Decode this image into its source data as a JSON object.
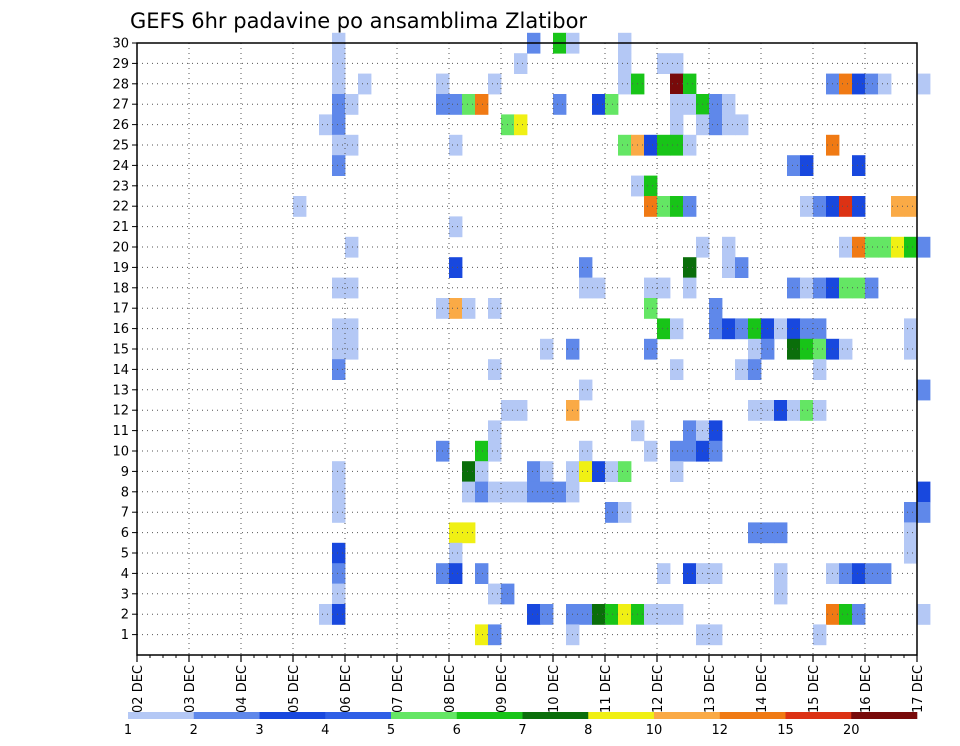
{
  "chart_data": {
    "type": "heatmap",
    "title": "GEFS 6hr padavine po ansamblima Zlatibor",
    "x_axis": {
      "tick_labels": [
        "02 DEC",
        "03 DEC",
        "04 DEC",
        "05 DEC",
        "06 DEC",
        "07 DEC",
        "08 DEC",
        "09 DEC",
        "10 DEC",
        "11 DEC",
        "12 DEC",
        "13 DEC",
        "14 DEC",
        "15 DEC",
        "16 DEC",
        "17 DEC"
      ],
      "steps_per_day": 4,
      "range_days": [
        0,
        15
      ]
    },
    "y_axis": {
      "tick_labels": [
        "1",
        "2",
        "3",
        "4",
        "5",
        "6",
        "7",
        "8",
        "9",
        "10",
        "11",
        "12",
        "13",
        "14",
        "15",
        "16",
        "17",
        "18",
        "19",
        "20",
        "21",
        "22",
        "23",
        "24",
        "25",
        "26",
        "27",
        "28",
        "29",
        "30"
      ],
      "range": [
        0,
        30
      ]
    },
    "grid": "dotted",
    "colorbar": {
      "placement": "bottom",
      "labels": [
        "1",
        "2",
        "3",
        "4",
        "5",
        "6",
        "7",
        "8",
        "10",
        "12",
        "15",
        "20"
      ],
      "colors": [
        "#b4c8f5",
        "#5f88ea",
        "#1848de",
        "#2f5fe6",
        "#64e664",
        "#18c418",
        "#0a6e0a",
        "#f0f014",
        "#faaa46",
        "#f07a14",
        "#dc3214",
        "#780a0a"
      ]
    },
    "color_levels": {
      "1": "#b4c8f5",
      "2": "#5f88ea",
      "3": "#1848de",
      "4": "#64e664",
      "5": "#18c418",
      "6": "#0a6e0a",
      "7": "#f0f014",
      "8": "#faaa46",
      "9": "#f07a14",
      "10": "#dc3214",
      "11": "#780a0a"
    },
    "note_cells": "each cell = [member, forecast_step(6h index from 02 DEC 00z), precipitation class]",
    "cells": [
      [
        30,
        15,
        1
      ],
      [
        30,
        30,
        2
      ],
      [
        30,
        32,
        5
      ],
      [
        30,
        33,
        1
      ],
      [
        30,
        37,
        1
      ],
      [
        29,
        15,
        1
      ],
      [
        29,
        29,
        1
      ],
      [
        29,
        37,
        1
      ],
      [
        29,
        40,
        1
      ],
      [
        29,
        41,
        1
      ],
      [
        28,
        15,
        1
      ],
      [
        28,
        17,
        1
      ],
      [
        28,
        23,
        1
      ],
      [
        28,
        27,
        1
      ],
      [
        28,
        37,
        1
      ],
      [
        28,
        38,
        5
      ],
      [
        28,
        41,
        11
      ],
      [
        28,
        42,
        5
      ],
      [
        28,
        53,
        2
      ],
      [
        28,
        54,
        9
      ],
      [
        28,
        55,
        3
      ],
      [
        28,
        56,
        2
      ],
      [
        28,
        57,
        1
      ],
      [
        28,
        60,
        1
      ],
      [
        27,
        15,
        2
      ],
      [
        27,
        16,
        1
      ],
      [
        27,
        23,
        2
      ],
      [
        27,
        24,
        2
      ],
      [
        27,
        25,
        4
      ],
      [
        27,
        26,
        9
      ],
      [
        27,
        32,
        2
      ],
      [
        27,
        35,
        3
      ],
      [
        27,
        36,
        4
      ],
      [
        27,
        41,
        1
      ],
      [
        27,
        42,
        1
      ],
      [
        27,
        43,
        5
      ],
      [
        27,
        44,
        2
      ],
      [
        27,
        45,
        1
      ],
      [
        26,
        14,
        1
      ],
      [
        26,
        15,
        2
      ],
      [
        26,
        28,
        4
      ],
      [
        26,
        29,
        7
      ],
      [
        26,
        41,
        1
      ],
      [
        26,
        43,
        1
      ],
      [
        26,
        44,
        2
      ],
      [
        26,
        45,
        1
      ],
      [
        26,
        46,
        1
      ],
      [
        25,
        15,
        1
      ],
      [
        25,
        16,
        1
      ],
      [
        25,
        24,
        1
      ],
      [
        25,
        37,
        4
      ],
      [
        25,
        38,
        8
      ],
      [
        25,
        39,
        3
      ],
      [
        25,
        40,
        5
      ],
      [
        25,
        41,
        5
      ],
      [
        25,
        42,
        1
      ],
      [
        25,
        53,
        9
      ],
      [
        24,
        15,
        2
      ],
      [
        24,
        50,
        2
      ],
      [
        24,
        51,
        3
      ],
      [
        24,
        55,
        3
      ],
      [
        23,
        38,
        1
      ],
      [
        23,
        39,
        5
      ],
      [
        22,
        12,
        1
      ],
      [
        22,
        39,
        9
      ],
      [
        22,
        40,
        4
      ],
      [
        22,
        41,
        5
      ],
      [
        22,
        42,
        2
      ],
      [
        22,
        51,
        1
      ],
      [
        22,
        52,
        2
      ],
      [
        22,
        53,
        3
      ],
      [
        22,
        54,
        10
      ],
      [
        22,
        55,
        3
      ],
      [
        22,
        58,
        8
      ],
      [
        22,
        59,
        8
      ],
      [
        21,
        24,
        1
      ],
      [
        20,
        16,
        1
      ],
      [
        20,
        43,
        1
      ],
      [
        20,
        45,
        1
      ],
      [
        20,
        54,
        1
      ],
      [
        20,
        55,
        9
      ],
      [
        20,
        56,
        4
      ],
      [
        20,
        57,
        4
      ],
      [
        20,
        58,
        7
      ],
      [
        20,
        59,
        5
      ],
      [
        20,
        60,
        2
      ],
      [
        19,
        24,
        3
      ],
      [
        19,
        34,
        2
      ],
      [
        19,
        42,
        6
      ],
      [
        19,
        45,
        1
      ],
      [
        19,
        46,
        2
      ],
      [
        18,
        15,
        1
      ],
      [
        18,
        16,
        1
      ],
      [
        18,
        34,
        1
      ],
      [
        18,
        35,
        1
      ],
      [
        18,
        39,
        1
      ],
      [
        18,
        40,
        1
      ],
      [
        18,
        42,
        1
      ],
      [
        18,
        50,
        2
      ],
      [
        18,
        51,
        1
      ],
      [
        18,
        52,
        2
      ],
      [
        18,
        53,
        3
      ],
      [
        18,
        54,
        4
      ],
      [
        18,
        55,
        4
      ],
      [
        18,
        56,
        2
      ],
      [
        17,
        23,
        1
      ],
      [
        17,
        24,
        8
      ],
      [
        17,
        25,
        1
      ],
      [
        17,
        27,
        1
      ],
      [
        17,
        39,
        4
      ],
      [
        17,
        44,
        2
      ],
      [
        16,
        15,
        1
      ],
      [
        16,
        16,
        1
      ],
      [
        16,
        40,
        5
      ],
      [
        16,
        41,
        1
      ],
      [
        16,
        44,
        2
      ],
      [
        16,
        45,
        3
      ],
      [
        16,
        46,
        2
      ],
      [
        16,
        47,
        5
      ],
      [
        16,
        48,
        3
      ],
      [
        16,
        49,
        1
      ],
      [
        16,
        50,
        3
      ],
      [
        16,
        51,
        2
      ],
      [
        16,
        52,
        2
      ],
      [
        16,
        59,
        1
      ],
      [
        15,
        15,
        1
      ],
      [
        15,
        16,
        1
      ],
      [
        15,
        31,
        1
      ],
      [
        15,
        33,
        2
      ],
      [
        15,
        39,
        2
      ],
      [
        15,
        47,
        1
      ],
      [
        15,
        48,
        2
      ],
      [
        15,
        50,
        6
      ],
      [
        15,
        51,
        5
      ],
      [
        15,
        52,
        4
      ],
      [
        15,
        53,
        3
      ],
      [
        15,
        54,
        1
      ],
      [
        15,
        59,
        1
      ],
      [
        14,
        15,
        2
      ],
      [
        14,
        27,
        1
      ],
      [
        14,
        41,
        1
      ],
      [
        14,
        46,
        1
      ],
      [
        14,
        47,
        2
      ],
      [
        14,
        52,
        1
      ],
      [
        13,
        34,
        1
      ],
      [
        13,
        60,
        2
      ],
      [
        12,
        28,
        1
      ],
      [
        12,
        29,
        1
      ],
      [
        12,
        33,
        8
      ],
      [
        12,
        47,
        1
      ],
      [
        12,
        48,
        1
      ],
      [
        12,
        49,
        3
      ],
      [
        12,
        50,
        1
      ],
      [
        12,
        51,
        4
      ],
      [
        12,
        52,
        1
      ],
      [
        11,
        27,
        1
      ],
      [
        11,
        38,
        1
      ],
      [
        11,
        42,
        2
      ],
      [
        11,
        43,
        1
      ],
      [
        11,
        44,
        3
      ],
      [
        10,
        23,
        2
      ],
      [
        10,
        26,
        5
      ],
      [
        10,
        27,
        1
      ],
      [
        10,
        34,
        1
      ],
      [
        10,
        39,
        1
      ],
      [
        10,
        41,
        2
      ],
      [
        10,
        42,
        2
      ],
      [
        10,
        43,
        3
      ],
      [
        10,
        44,
        2
      ],
      [
        9,
        15,
        1
      ],
      [
        9,
        25,
        6
      ],
      [
        9,
        26,
        1
      ],
      [
        9,
        30,
        2
      ],
      [
        9,
        31,
        1
      ],
      [
        9,
        33,
        1
      ],
      [
        9,
        34,
        7
      ],
      [
        9,
        35,
        3
      ],
      [
        9,
        36,
        1
      ],
      [
        9,
        37,
        4
      ],
      [
        9,
        41,
        1
      ],
      [
        8,
        15,
        1
      ],
      [
        8,
        25,
        1
      ],
      [
        8,
        26,
        2
      ],
      [
        8,
        27,
        1
      ],
      [
        8,
        28,
        1
      ],
      [
        8,
        29,
        1
      ],
      [
        8,
        30,
        2
      ],
      [
        8,
        31,
        2
      ],
      [
        8,
        32,
        2
      ],
      [
        8,
        33,
        1
      ],
      [
        8,
        60,
        3
      ],
      [
        7,
        15,
        1
      ],
      [
        7,
        36,
        2
      ],
      [
        7,
        37,
        1
      ],
      [
        7,
        59,
        2
      ],
      [
        7,
        60,
        2
      ],
      [
        6,
        24,
        7
      ],
      [
        6,
        25,
        7
      ],
      [
        6,
        47,
        2
      ],
      [
        6,
        48,
        2
      ],
      [
        6,
        49,
        2
      ],
      [
        6,
        59,
        1
      ],
      [
        5,
        15,
        3
      ],
      [
        5,
        24,
        1
      ],
      [
        5,
        59,
        1
      ],
      [
        4,
        15,
        2
      ],
      [
        4,
        23,
        2
      ],
      [
        4,
        24,
        3
      ],
      [
        4,
        26,
        2
      ],
      [
        4,
        40,
        1
      ],
      [
        4,
        42,
        3
      ],
      [
        4,
        43,
        1
      ],
      [
        4,
        44,
        1
      ],
      [
        4,
        49,
        1
      ],
      [
        4,
        53,
        1
      ],
      [
        4,
        54,
        2
      ],
      [
        4,
        55,
        3
      ],
      [
        4,
        56,
        2
      ],
      [
        4,
        57,
        2
      ],
      [
        3,
        15,
        1
      ],
      [
        3,
        27,
        1
      ],
      [
        3,
        28,
        2
      ],
      [
        3,
        49,
        1
      ],
      [
        2,
        14,
        1
      ],
      [
        2,
        15,
        3
      ],
      [
        2,
        30,
        3
      ],
      [
        2,
        31,
        2
      ],
      [
        2,
        33,
        2
      ],
      [
        2,
        34,
        2
      ],
      [
        2,
        35,
        6
      ],
      [
        2,
        36,
        5
      ],
      [
        2,
        37,
        7
      ],
      [
        2,
        38,
        5
      ],
      [
        2,
        39,
        1
      ],
      [
        2,
        40,
        1
      ],
      [
        2,
        41,
        1
      ],
      [
        2,
        53,
        9
      ],
      [
        2,
        54,
        5
      ],
      [
        2,
        55,
        2
      ],
      [
        2,
        60,
        1
      ],
      [
        1,
        26,
        7
      ],
      [
        1,
        27,
        2
      ],
      [
        1,
        33,
        1
      ],
      [
        1,
        43,
        1
      ],
      [
        1,
        44,
        1
      ],
      [
        1,
        52,
        1
      ]
    ]
  }
}
